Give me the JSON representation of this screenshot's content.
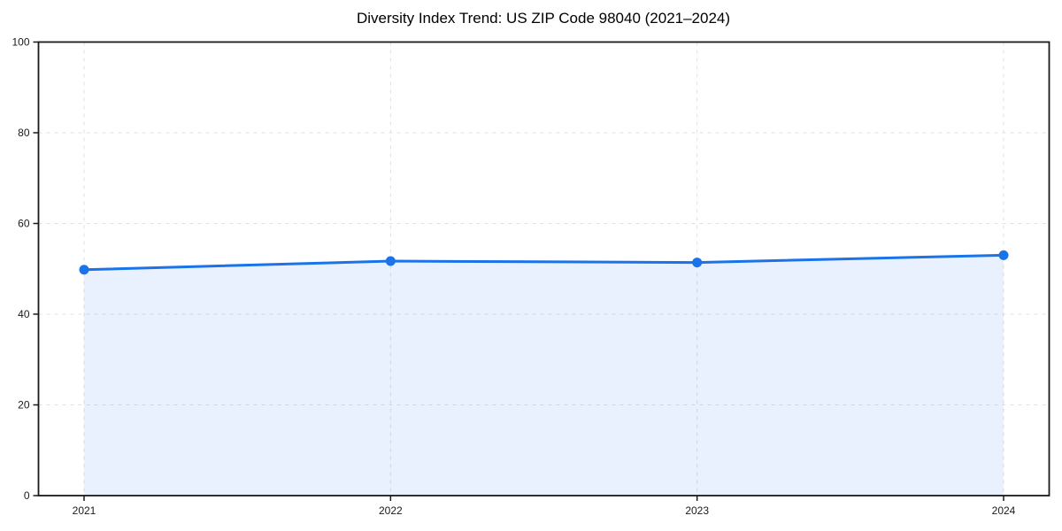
{
  "figure": {
    "background": "#ffffff"
  },
  "chart_data": {
    "type": "area",
    "title": "Diversity Index Trend: US ZIP Code 98040 (2021–2024)",
    "categories": [
      "2021",
      "2022",
      "2023",
      "2024"
    ],
    "values": [
      49.8,
      51.7,
      51.4,
      53.0
    ],
    "series_name": "Diversity Index",
    "xlabel": "",
    "ylabel": "",
    "ylim": [
      0,
      100
    ],
    "yticks": [
      0,
      20,
      40,
      60,
      80,
      100
    ],
    "grid": true,
    "grid_style": "dashed",
    "legend_position": "none",
    "line_color": "#1a73e8",
    "marker_color": "#1a73e8",
    "fill_color": "rgba(26,115,232,0.10)",
    "grid_color": "#e0e0e0",
    "spine_color": "#1a1a1a",
    "tick_label_color": "#1a1a1a"
  }
}
